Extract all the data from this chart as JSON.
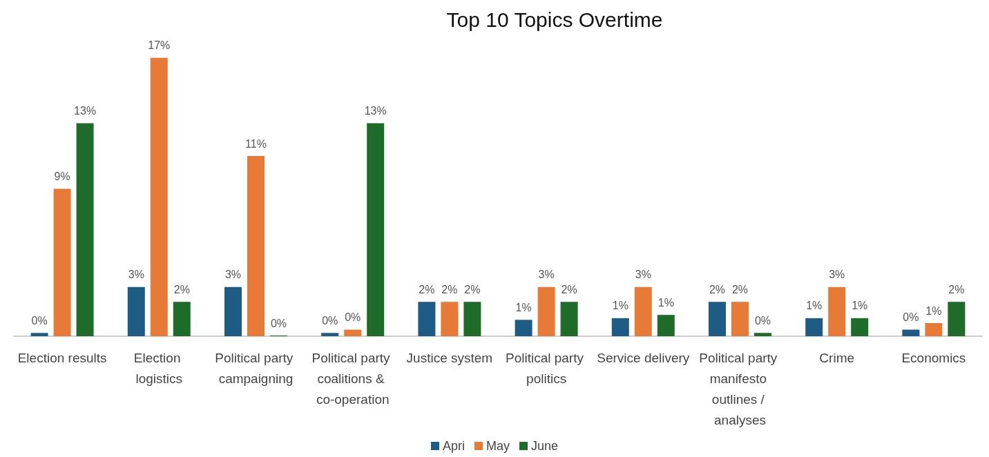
{
  "chart_data": {
    "type": "bar",
    "title": "Top 10 Topics Overtime",
    "categories": [
      "Election results",
      "Election logistics",
      "Political party campaigning",
      "Political party coalitions & co-operation",
      "Justice system",
      "Political party politics",
      "Service delivery",
      "Political party manifesto outlines / analyses",
      "Crime",
      "Economics"
    ],
    "series": [
      {
        "name": "Apri",
        "color": "#1f5c85",
        "values": [
          0.2,
          3.0,
          3.0,
          0.2,
          2.1,
          1.0,
          1.1,
          2.1,
          1.1,
          0.4
        ],
        "value_labels": [
          "0%",
          "3%",
          "3%",
          "0%",
          "2%",
          "1%",
          "1%",
          "2%",
          "1%",
          "0%"
        ]
      },
      {
        "name": "May",
        "color": "#e87a38",
        "values": [
          9.0,
          17.0,
          11.0,
          0.4,
          2.1,
          3.0,
          3.0,
          2.1,
          3.0,
          0.8
        ],
        "value_labels": [
          "9%",
          "17%",
          "11%",
          "0%",
          "2%",
          "3%",
          "3%",
          "2%",
          "3%",
          "1%"
        ]
      },
      {
        "name": "June",
        "color": "#1e6b2a",
        "values": [
          13.0,
          2.1,
          0,
          13.0,
          2.1,
          2.1,
          1.3,
          0.2,
          1.1,
          2.1
        ],
        "value_labels": [
          "13%",
          "2%",
          "0%",
          "13%",
          "2%",
          "2%",
          "1%",
          "0%",
          "1%",
          "2%"
        ]
      }
    ],
    "legend": "bottom",
    "grid": false
  }
}
